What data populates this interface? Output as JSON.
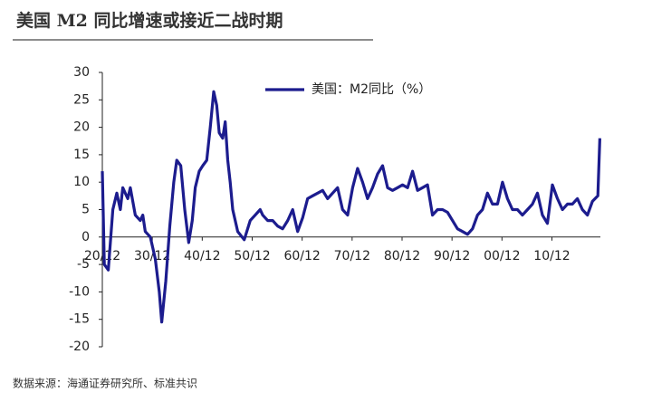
{
  "chart_data": {
    "type": "line",
    "title": "美国 M2 同比增速或接近二战时期",
    "source": "数据来源：海通证券研究所、标准共识",
    "series": [
      {
        "name": "美国：M2同比（%）",
        "color": "#1c1c8e",
        "x": [
          1920.9,
          1921.3,
          1922.1,
          1923.0,
          1923.8,
          1924.5,
          1925.0,
          1926.0,
          1926.5,
          1927.5,
          1928.5,
          1929.0,
          1929.5,
          1930.5,
          1931.5,
          1932.3,
          1932.8,
          1933.6,
          1934.4,
          1935.2,
          1935.8,
          1936.6,
          1937.4,
          1938.2,
          1938.9,
          1939.5,
          1940.3,
          1941.0,
          1941.8,
          1942.5,
          1943.2,
          1943.8,
          1944.3,
          1945.0,
          1945.5,
          1946.0,
          1946.5,
          1947.0,
          1948.0,
          1949.3,
          1950.5,
          1951.5,
          1952.5,
          1953.0,
          1954.0,
          1955.0,
          1956.0,
          1957.0,
          1958.0,
          1959.0,
          1960.0,
          1961.0,
          1962.0,
          1963.0,
          1964.0,
          1965.0,
          1966.0,
          1967.0,
          1968.0,
          1969.0,
          1970.0,
          1971.0,
          1972.0,
          1973.0,
          1974.0,
          1975.0,
          1976.0,
          1977.0,
          1978.0,
          1979.0,
          1980.0,
          1981.0,
          1982.0,
          1983.0,
          1984.0,
          1985.0,
          1986.0,
          1987.0,
          1988.0,
          1989.0,
          1990.0,
          1991.0,
          1992.0,
          1993.0,
          1994.0,
          1995.0,
          1996.0,
          1997.0,
          1998.0,
          1999.0,
          2000.0,
          2001.0,
          2002.0,
          2003.0,
          2004.0,
          2005.0,
          2006.0,
          2007.0,
          2008.0,
          2009.0,
          2010.0,
          2011.0,
          2012.0,
          2013.0,
          2014.0,
          2015.0,
          2016.0,
          2017.0,
          2018.0,
          2019.0,
          2020.1,
          2020.5
        ],
        "values": [
          12,
          -5,
          -6,
          5,
          8,
          5,
          9,
          7,
          9,
          4,
          3,
          4,
          1,
          0,
          -4,
          -10,
          -15.5,
          -8,
          2,
          10,
          14,
          13,
          5,
          -1,
          3,
          9,
          12,
          13,
          14,
          20,
          26.5,
          24,
          19,
          18,
          21,
          14,
          10,
          5,
          1,
          -0.5,
          3,
          4,
          5,
          4,
          3,
          3,
          2,
          1.5,
          3,
          5,
          1,
          3.5,
          7,
          7.5,
          8,
          8.5,
          7,
          8,
          9,
          5,
          4,
          9,
          12.5,
          10,
          7,
          9,
          11.5,
          13,
          9,
          8.5,
          9,
          9.5,
          9,
          12,
          8.5,
          9,
          9.5,
          4,
          5,
          5,
          4.5,
          3,
          1.5,
          1,
          0.5,
          1.5,
          4,
          5,
          8,
          6,
          6,
          10,
          7,
          5,
          5,
          4,
          5,
          6,
          8,
          4,
          2.5,
          9.5,
          7,
          5,
          6,
          6,
          7,
          5,
          4,
          6.5,
          7.5,
          18
        ]
      }
    ],
    "xlim": [
      1920.9,
      2020.6
    ],
    "xticks": [
      {
        "value": 1920.9,
        "label": "20/12"
      },
      {
        "value": 1930.9,
        "label": "30/12"
      },
      {
        "value": 1940.9,
        "label": "40/12"
      },
      {
        "value": 1950.9,
        "label": "50/12"
      },
      {
        "value": 1960.9,
        "label": "60/12"
      },
      {
        "value": 1970.9,
        "label": "70/12"
      },
      {
        "value": 1980.9,
        "label": "80/12"
      },
      {
        "value": 1990.9,
        "label": "90/12"
      },
      {
        "value": 2000.9,
        "label": "00/12"
      },
      {
        "value": 2010.9,
        "label": "10/12"
      }
    ],
    "ylim": [
      -20,
      30
    ],
    "yticks": [
      -20,
      -15,
      -10,
      -5,
      0,
      5,
      10,
      15,
      20,
      25,
      30
    ],
    "grid": false,
    "legend": "top"
  }
}
